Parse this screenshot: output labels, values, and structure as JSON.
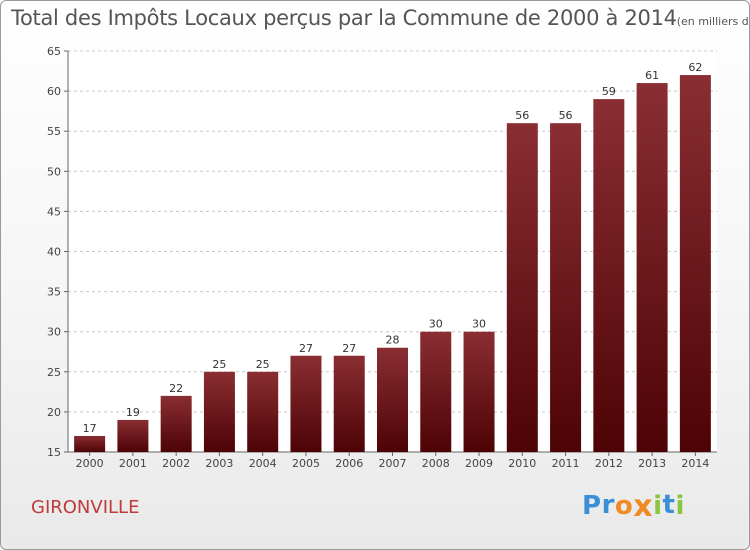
{
  "chart_data": {
    "type": "bar",
    "title": "Total des Impôts Locaux perçus par la Commune de 2000 à 2014",
    "unit_note": "(en milliers d'€)",
    "categories": [
      "2000",
      "2001",
      "2002",
      "2003",
      "2004",
      "2005",
      "2006",
      "2007",
      "2008",
      "2009",
      "2010",
      "2011",
      "2012",
      "2013",
      "2014"
    ],
    "values": [
      17,
      19,
      22,
      25,
      25,
      27,
      27,
      28,
      30,
      30,
      56,
      56,
      59,
      61,
      62
    ],
    "ylim": [
      15,
      65
    ],
    "yticks": [
      15,
      20,
      25,
      30,
      35,
      40,
      45,
      50,
      55,
      60,
      65
    ],
    "xlabel": "",
    "ylabel": "",
    "grid": "horizontal dashed",
    "legend": "none",
    "bar_color": "#6b1418"
  },
  "commune": "GIRONVILLE",
  "logo": {
    "letters": [
      "P",
      "r",
      "o",
      "x",
      "i",
      "t",
      "i"
    ],
    "colors": [
      "#3a8fd6",
      "#3a8fd6",
      "#f08a24",
      "#f08a24",
      "#8bc43f",
      "#3a8fd6",
      "#8bc43f"
    ]
  }
}
